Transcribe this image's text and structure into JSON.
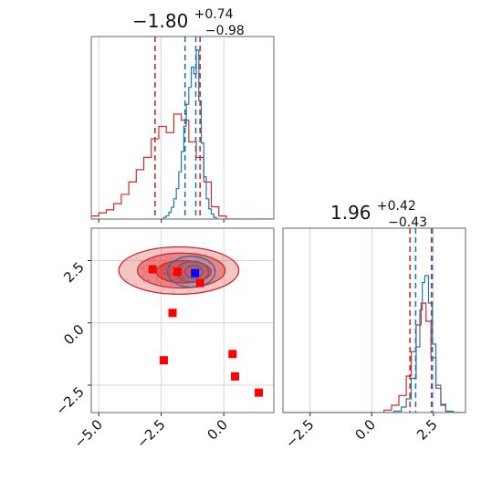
{
  "colors": {
    "blue": "#1f77b4",
    "red": "#d62728",
    "red_fill": "#f4c7c8",
    "marker_red": "#ff0000",
    "marker_blue": "#0000ff",
    "grid": "#cccccc"
  },
  "chart_data": {
    "type": "corner",
    "grid": true,
    "params": [
      {
        "title": {
          "median": "−1.80",
          "plus": "+0.74",
          "minus": "−0.98"
        },
        "range": [
          -5.3,
          2.0
        ],
        "ticks": [
          -5.0,
          -2.5,
          0.0
        ],
        "tick_labels": [
          "−5.0",
          "−2.5",
          "0.0"
        ],
        "quantiles_red": [
          -2.75,
          -0.95
        ],
        "quantiles_blue": [
          -1.55,
          -1.12
        ],
        "median_red": -1.05
      },
      {
        "title": {
          "median": "1.96",
          "plus": "+0.42",
          "minus": "−0.43"
        },
        "range": [
          -3.6,
          3.8
        ],
        "ticks": [
          -2.5,
          0.0,
          2.5
        ],
        "tick_labels": [
          "−2.5",
          "0.0",
          "2.5"
        ],
        "quantiles_red": [
          1.55,
          2.42
        ],
        "quantiles_blue": [
          1.78,
          2.45
        ],
        "median_red": 2.4
      }
    ],
    "hist1_bins": [
      -5.3,
      -5.0,
      -4.7,
      -4.4,
      -4.1,
      -3.8,
      -3.5,
      -3.2,
      -2.9,
      -2.6,
      -2.3,
      -2.0,
      -1.7,
      -1.4,
      -1.1,
      -0.8,
      -0.5,
      -0.2,
      0.1,
      0.4,
      0.7,
      1.0,
      1.3,
      1.6,
      2.0
    ],
    "hist1_red": [
      0.01,
      0.02,
      0.03,
      0.05,
      0.08,
      0.12,
      0.16,
      0.2,
      0.26,
      0.3,
      0.28,
      0.34,
      0.32,
      0.25,
      0.2,
      0.12,
      0.04,
      0.01,
      0.0,
      0.0,
      0.0,
      0.0,
      0.0,
      0.0
    ],
    "hist1_blue_x": [
      -2.5,
      -2.4,
      -2.3,
      -2.2,
      -2.1,
      -2.0,
      -1.9,
      -1.8,
      -1.7,
      -1.6,
      -1.5,
      -1.4,
      -1.3,
      -1.2,
      -1.1,
      -1.0,
      -0.9,
      -0.8,
      -0.7,
      -0.6,
      -0.5,
      -0.4,
      -0.3,
      -0.2
    ],
    "hist1_blue": [
      0.0,
      0.01,
      0.02,
      0.04,
      0.07,
      0.12,
      0.18,
      0.28,
      0.4,
      0.55,
      0.68,
      0.78,
      0.9,
      0.86,
      1.0,
      0.7,
      0.45,
      0.25,
      0.12,
      0.06,
      0.03,
      0.01,
      0.0,
      0.0
    ],
    "hist2_bins": [
      -3.6,
      0.5,
      0.8,
      1.1,
      1.4,
      1.6,
      1.8,
      2.0,
      2.2,
      2.4,
      2.6,
      2.8,
      3.0,
      3.2,
      3.8
    ],
    "hist2_red": [
      0.0,
      0.02,
      0.06,
      0.14,
      0.3,
      0.5,
      0.72,
      0.9,
      0.75,
      0.45,
      0.2,
      0.06,
      0.01,
      0.0
    ],
    "hist2_blue_x": [
      0.6,
      0.9,
      1.2,
      1.4,
      1.6,
      1.8,
      1.95,
      2.05,
      2.15,
      2.3,
      2.45,
      2.6,
      2.8,
      3.0,
      3.3
    ],
    "hist2_blue": [
      0.0,
      0.01,
      0.04,
      0.1,
      0.25,
      0.48,
      0.75,
      0.95,
      1.0,
      0.8,
      0.5,
      0.2,
      0.06,
      0.01,
      0.0
    ],
    "scatter_red_markers": [
      {
        "x": -2.85,
        "y": 2.15
      },
      {
        "x": -1.85,
        "y": 2.05
      },
      {
        "x": -0.95,
        "y": 1.6
      },
      {
        "x": -2.05,
        "y": 0.4
      },
      {
        "x": -2.4,
        "y": -1.5
      },
      {
        "x": 0.35,
        "y": -1.25
      },
      {
        "x": 0.45,
        "y": -2.15
      },
      {
        "x": 1.4,
        "y": -2.8
      }
    ],
    "scatter_blue_markers": [
      {
        "x": -1.15,
        "y": 2.0
      }
    ],
    "contours_red": [
      {
        "cx": -1.8,
        "cy": 2.1,
        "rx": 2.4,
        "ry": 0.95,
        "alpha": 0.45
      },
      {
        "cx": -1.7,
        "cy": 2.1,
        "rx": 1.75,
        "ry": 0.7,
        "alpha": 0.65
      },
      {
        "cx": -1.6,
        "cy": 2.05,
        "rx": 1.1,
        "ry": 0.45,
        "alpha": 0.85
      }
    ],
    "contours_blue": [
      {
        "cx": -1.3,
        "cy": 2.05,
        "rx": 0.95,
        "ry": 0.62
      },
      {
        "cx": -1.25,
        "cy": 2.05,
        "rx": 0.65,
        "ry": 0.42
      },
      {
        "cx": -1.2,
        "cy": 2.05,
        "rx": 0.35,
        "ry": 0.25
      }
    ]
  }
}
